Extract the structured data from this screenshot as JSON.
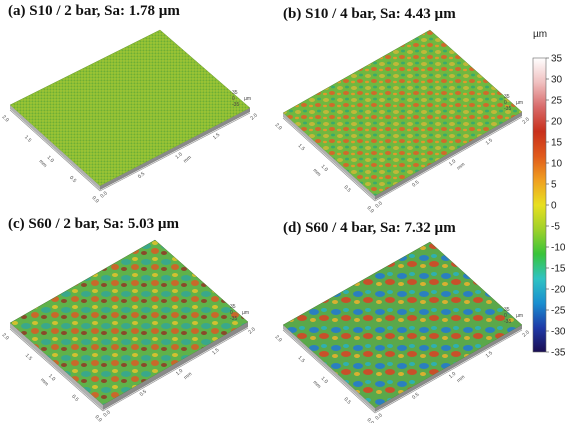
{
  "panels": [
    {
      "title": "(a) S10 / 2 bar, Sa: 1.78 µm",
      "sa_um": 1.78
    },
    {
      "title": "(b) S10 / 4 bar, Sa: 4.43 µm",
      "sa_um": 4.43
    },
    {
      "title": "(c) S60 / 2 bar, Sa: 5.03 µm",
      "sa_um": 5.03
    },
    {
      "title": "(d) S60 / 4 bar, Sa: 7.32 µm",
      "sa_um": 7.32
    }
  ],
  "axis": {
    "x_ticks": [
      "0.0",
      "0.5",
      "1.0",
      "1.5",
      "2.0"
    ],
    "y_ticks": [
      "0.0",
      "0.5",
      "1.0",
      "1.5",
      "2.0"
    ],
    "x_unit": "mm",
    "y_unit": "mm",
    "z_ticks": [
      "35",
      "0",
      "-35"
    ],
    "z_unit": "µm"
  },
  "colorbar": {
    "unit": "µm",
    "ticks": [
      "35",
      "30",
      "25",
      "20",
      "15",
      "10",
      "5",
      "0",
      "-5",
      "-10",
      "-15",
      "-20",
      "-25",
      "-30",
      "-35"
    ],
    "min": -35,
    "max": 35,
    "colors": [
      "#1a0d52",
      "#1f3aa8",
      "#1a8fd0",
      "#2fc3c2",
      "#39c43a",
      "#9fd12a",
      "#e8e020",
      "#f0a020",
      "#e05a1c",
      "#c8301c",
      "#d86a6a",
      "#f0c0c0",
      "#ffffff"
    ]
  }
}
